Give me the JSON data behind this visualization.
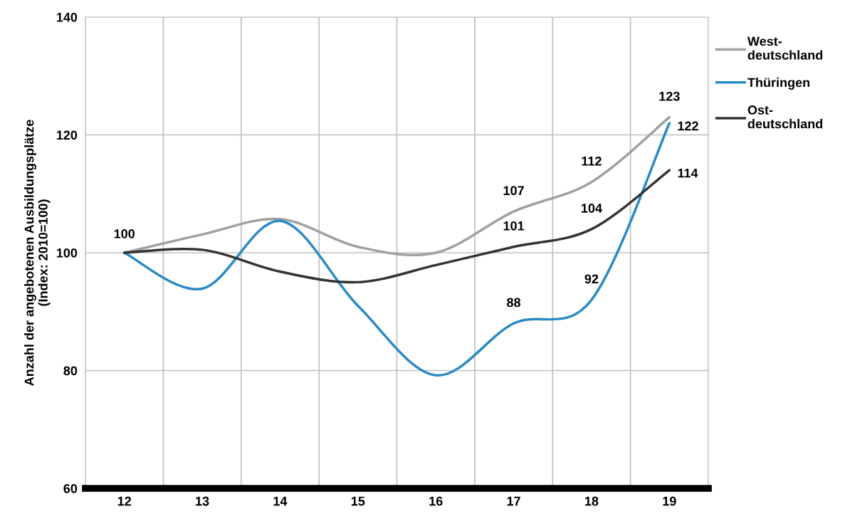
{
  "chart_data": {
    "type": "line",
    "ylabel": "Anzahl der angebotenen Ausbildungsplätze\n(Index: 2010=100)",
    "categories": [
      "12",
      "13",
      "14",
      "15",
      "16",
      "17",
      "18",
      "19"
    ],
    "series": [
      {
        "name": "West-\ndeutschland",
        "color": "#a0a0a0",
        "values": [
          100,
          103.1,
          105.7,
          101,
          100,
          107,
          112,
          123
        ],
        "value_labels": [
          "100",
          null,
          null,
          null,
          null,
          "107",
          "112",
          "123"
        ]
      },
      {
        "name": "Thüringen",
        "color": "#2a8ac4",
        "values": [
          100,
          93.9,
          105.4,
          91,
          79.2,
          88,
          92,
          122
        ],
        "value_labels": [
          null,
          null,
          null,
          null,
          null,
          "88",
          "92",
          "122"
        ]
      },
      {
        "name": "Ost-\ndeutschland",
        "color": "#333333",
        "values": [
          100,
          100.5,
          96.8,
          95,
          97.9,
          101,
          104,
          114
        ],
        "value_labels": [
          null,
          null,
          null,
          null,
          null,
          "101",
          "104",
          "114"
        ]
      }
    ],
    "ylim": [
      60,
      140
    ],
    "yticks": [
      60,
      80,
      100,
      120,
      140
    ],
    "grid": true,
    "legend": "right",
    "line_style": "solid",
    "marker": "none"
  }
}
